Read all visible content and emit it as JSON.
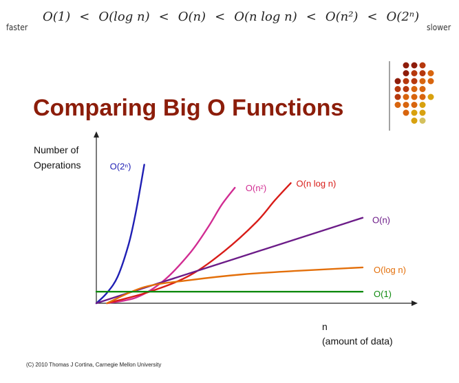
{
  "order": {
    "left_label": "faster",
    "right_label": "slower",
    "separator": "<",
    "terms": [
      "O(1)",
      "O(log  n)",
      "O(n)",
      "O(n log  n)",
      "O(n²)",
      "O(2ⁿ)"
    ]
  },
  "slide": {
    "title": "Comparing Big O Functions",
    "credit": "(C) 2010 Thomas J Cortina, Carnegie Mellon University"
  },
  "decoration": {
    "dot_colors": [
      "#8e1c0a",
      "#b6380d",
      "#d8650e",
      "#d8a10f",
      "#d4c15d"
    ]
  },
  "chart_data": {
    "type": "line",
    "title": "Comparing Big O Functions",
    "ylabel_lines": [
      "Number of",
      "Operations"
    ],
    "xlabel_lines": [
      "n",
      "(amount of data)"
    ],
    "xlim": [
      0,
      100
    ],
    "ylim": [
      0,
      100
    ],
    "grid": false,
    "series": [
      {
        "name": "O(2ⁿ)",
        "color": "#1f1fb4",
        "x": [
          0,
          4,
          8,
          12,
          14.5,
          16.5,
          18
        ],
        "y": [
          0,
          9,
          23,
          50,
          75,
          100,
          120
        ]
      },
      {
        "name": "O(n²)",
        "color": "#d12c92",
        "x": [
          4,
          15,
          25,
          35,
          42,
          47,
          52
        ],
        "y": [
          0,
          5,
          19,
          43,
          66,
          85,
          100
        ]
      },
      {
        "name": "O(n log n)",
        "color": "#d81c18",
        "x": [
          4,
          20,
          35,
          48,
          60,
          67,
          73
        ],
        "y": [
          0,
          10,
          24,
          45,
          70,
          89,
          104
        ]
      },
      {
        "name": "O(n)",
        "color": "#6c1c88",
        "x": [
          0,
          100
        ],
        "y": [
          0,
          74
        ]
      },
      {
        "name": "O(log n)",
        "color": "#e36f0a",
        "x": [
          4,
          18,
          35,
          55,
          75,
          100
        ],
        "y": [
          0,
          14,
          20,
          25,
          28,
          31
        ]
      },
      {
        "name": "O(1)",
        "color": "#0f8a0f",
        "x": [
          0,
          100
        ],
        "y": [
          10,
          10
        ]
      }
    ]
  }
}
